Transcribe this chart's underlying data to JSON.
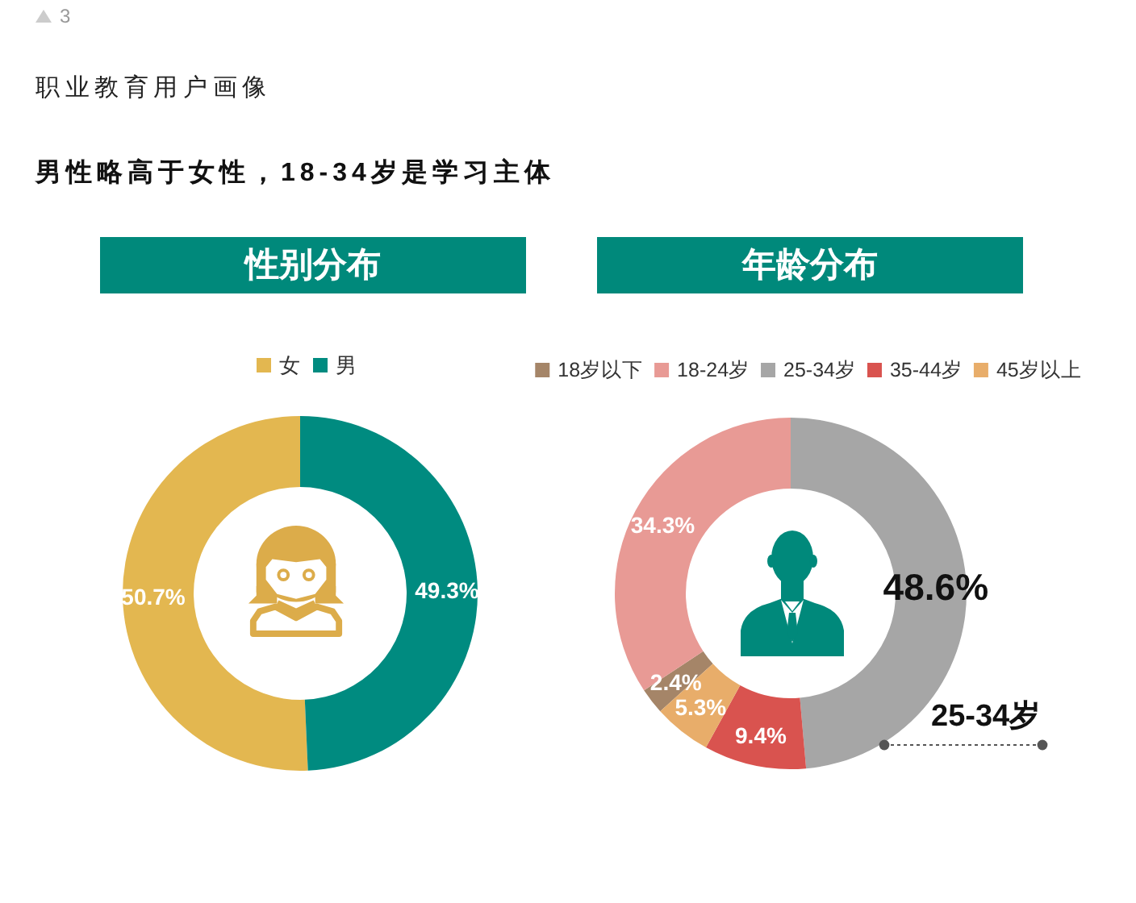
{
  "chart_data": [
    {
      "type": "other",
      "title": "职业教育用户画像",
      "subtitle": "男性略高于女性，18-34岁是学习主体",
      "annotations": [
        "3"
      ]
    },
    {
      "type": "donut",
      "title": "性别分布",
      "categories": [
        "女",
        "男"
      ],
      "values": [
        50.7,
        49.3
      ],
      "colors": [
        "#e3b750",
        "#008b80"
      ],
      "value_labels": [
        "50.7%",
        "49.3%"
      ],
      "legend": "top"
    },
    {
      "type": "donut",
      "title": "年龄分布",
      "categories": [
        "18岁以下",
        "18-24岁",
        "25-34岁",
        "35-44岁",
        "45岁以上"
      ],
      "values": [
        2.4,
        34.3,
        48.6,
        9.4,
        5.3
      ],
      "colors": [
        "#a58568",
        "#e89a95",
        "#a6a6a6",
        "#d9534f",
        "#e8ad6a"
      ],
      "value_labels": [
        "2.4%",
        "34.3%",
        "48.6%",
        "9.4%",
        "5.3%"
      ],
      "legend": "top",
      "annotations": [
        "25-34岁"
      ]
    }
  ]
}
